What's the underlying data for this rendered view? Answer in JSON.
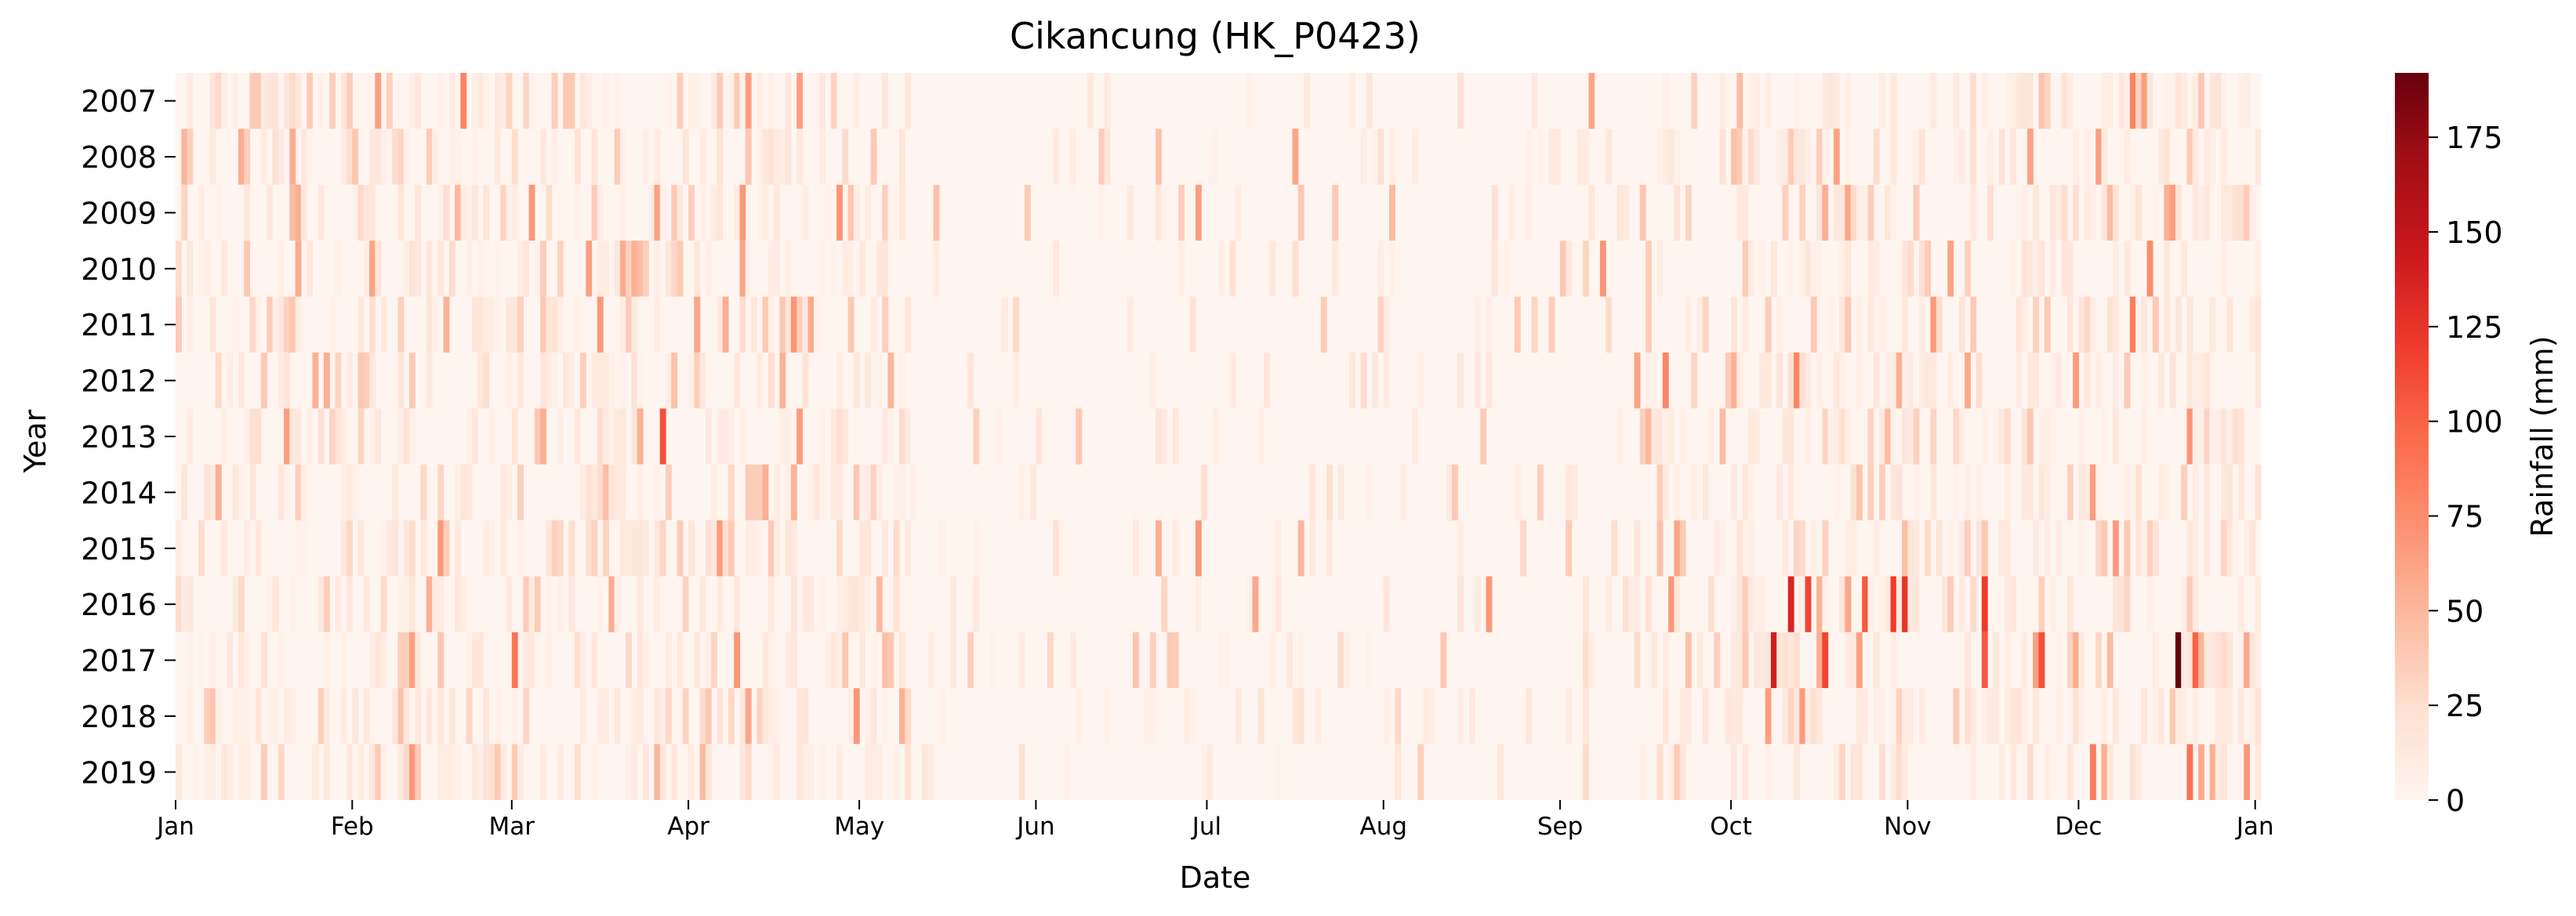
{
  "chart_data": {
    "type": "heatmap",
    "title": "Cikancung (HK_P0423)",
    "xlabel": "Date",
    "ylabel": "Year",
    "rows": [
      "2007",
      "2008",
      "2009",
      "2010",
      "2011",
      "2012",
      "2013",
      "2014",
      "2015",
      "2016",
      "2017",
      "2018",
      "2019"
    ],
    "x_tick_labels": [
      "Jan",
      "Feb",
      "Mar",
      "Apr",
      "May",
      "Jun",
      "Jul",
      "Aug",
      "Sep",
      "Oct",
      "Nov",
      "Dec",
      "Jan"
    ],
    "x_tick_day_of_year": [
      1,
      32,
      60,
      91,
      121,
      152,
      182,
      213,
      244,
      274,
      305,
      335,
      366
    ],
    "days_per_row": 366,
    "colorbar": {
      "label": "Rainfall (mm)",
      "colormap": "Reds",
      "range": [
        0,
        192
      ],
      "ticks": [
        0,
        25,
        50,
        75,
        100,
        125,
        150,
        175
      ],
      "colors": [
        "#fff5f0",
        "#fee0d2",
        "#fcbba1",
        "#fc9272",
        "#fb6a4a",
        "#ef3b2c",
        "#cb181d",
        "#a50f15",
        "#67000d"
      ]
    },
    "notable_values": [
      {
        "year": "2007",
        "day_of_year": 51,
        "rainfall_mm": 80
      },
      {
        "year": "2007",
        "day_of_year": 110,
        "rainfall_mm": 65
      },
      {
        "year": "2007",
        "day_of_year": 344,
        "rainfall_mm": 80
      },
      {
        "year": "2008",
        "day_of_year": 274,
        "rainfall_mm": 45
      },
      {
        "year": "2008",
        "day_of_year": 338,
        "rainfall_mm": 65
      },
      {
        "year": "2009",
        "day_of_year": 117,
        "rainfall_mm": 70
      },
      {
        "year": "2009",
        "day_of_year": 350,
        "rainfall_mm": 55
      },
      {
        "year": "2010",
        "day_of_year": 251,
        "rainfall_mm": 70
      },
      {
        "year": "2010",
        "day_of_year": 347,
        "rainfall_mm": 75
      },
      {
        "year": "2011",
        "day_of_year": 344,
        "rainfall_mm": 85
      },
      {
        "year": "2012",
        "day_of_year": 262,
        "rainfall_mm": 80
      },
      {
        "year": "2012",
        "day_of_year": 285,
        "rainfall_mm": 80
      },
      {
        "year": "2013",
        "day_of_year": 86,
        "rainfall_mm": 110
      },
      {
        "year": "2013",
        "day_of_year": 354,
        "rainfall_mm": 70
      },
      {
        "year": "2016",
        "day_of_year": 284,
        "rainfall_mm": 135
      },
      {
        "year": "2016",
        "day_of_year": 287,
        "rainfall_mm": 115
      },
      {
        "year": "2016",
        "day_of_year": 297,
        "rainfall_mm": 105
      },
      {
        "year": "2016",
        "day_of_year": 302,
        "rainfall_mm": 120
      },
      {
        "year": "2016",
        "day_of_year": 304,
        "rainfall_mm": 125
      },
      {
        "year": "2016",
        "day_of_year": 318,
        "rainfall_mm": 120
      },
      {
        "year": "2017",
        "day_of_year": 60,
        "rainfall_mm": 90
      },
      {
        "year": "2017",
        "day_of_year": 281,
        "rainfall_mm": 140
      },
      {
        "year": "2017",
        "day_of_year": 290,
        "rainfall_mm": 115
      },
      {
        "year": "2017",
        "day_of_year": 318,
        "rainfall_mm": 105
      },
      {
        "year": "2017",
        "day_of_year": 328,
        "rainfall_mm": 110
      },
      {
        "year": "2017",
        "day_of_year": 352,
        "rainfall_mm": 192
      },
      {
        "year": "2017",
        "day_of_year": 355,
        "rainfall_mm": 100
      },
      {
        "year": "2019",
        "day_of_year": 337,
        "rainfall_mm": 85
      },
      {
        "year": "2019",
        "day_of_year": 354,
        "rainfall_mm": 90
      }
    ]
  }
}
